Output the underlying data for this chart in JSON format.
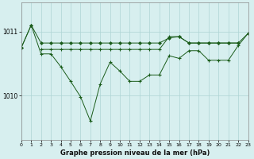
{
  "title": "Graphe pression niveau de la mer (hPa)",
  "bg_color": "#d7efef",
  "grid_color": "#aed4d4",
  "line_color": "#1a5c1a",
  "xlim": [
    0,
    23
  ],
  "ylim": [
    1009.3,
    1011.45
  ],
  "yticks": [
    1010,
    1011
  ],
  "xticks": [
    0,
    1,
    2,
    3,
    4,
    5,
    6,
    7,
    8,
    9,
    10,
    11,
    12,
    13,
    14,
    15,
    16,
    17,
    18,
    19,
    20,
    21,
    22,
    23
  ],
  "series_upper": [
    1010.75,
    1011.1,
    1010.82,
    1010.82,
    1010.82,
    1010.82,
    1010.82,
    1010.82,
    1010.82,
    1010.82,
    1010.82,
    1010.82,
    1010.82,
    1010.82,
    1010.82,
    1010.9,
    1010.92,
    1010.82,
    1010.82,
    1010.82,
    1010.82,
    1010.82,
    1010.82,
    1010.97
  ],
  "series_lower": [
    1010.75,
    1011.1,
    1010.65,
    1010.65,
    1010.45,
    1010.22,
    1009.98,
    1009.6,
    1010.18,
    1010.52,
    1010.38,
    1010.22,
    1010.22,
    1010.32,
    1010.32,
    1010.62,
    1010.58,
    1010.7,
    1010.7,
    1010.55,
    1010.55,
    1010.55,
    1010.78,
    1010.97
  ],
  "series_mid": [
    null,
    null,
    1010.72,
    1010.72,
    1010.72,
    1010.72,
    1010.72,
    1010.72,
    1010.72,
    1010.72,
    1010.72,
    1010.72,
    1010.72,
    1010.72,
    1010.72,
    1010.92,
    1010.92,
    1010.82,
    1010.82,
    1010.82,
    1010.82,
    1010.82,
    1010.82,
    null
  ]
}
